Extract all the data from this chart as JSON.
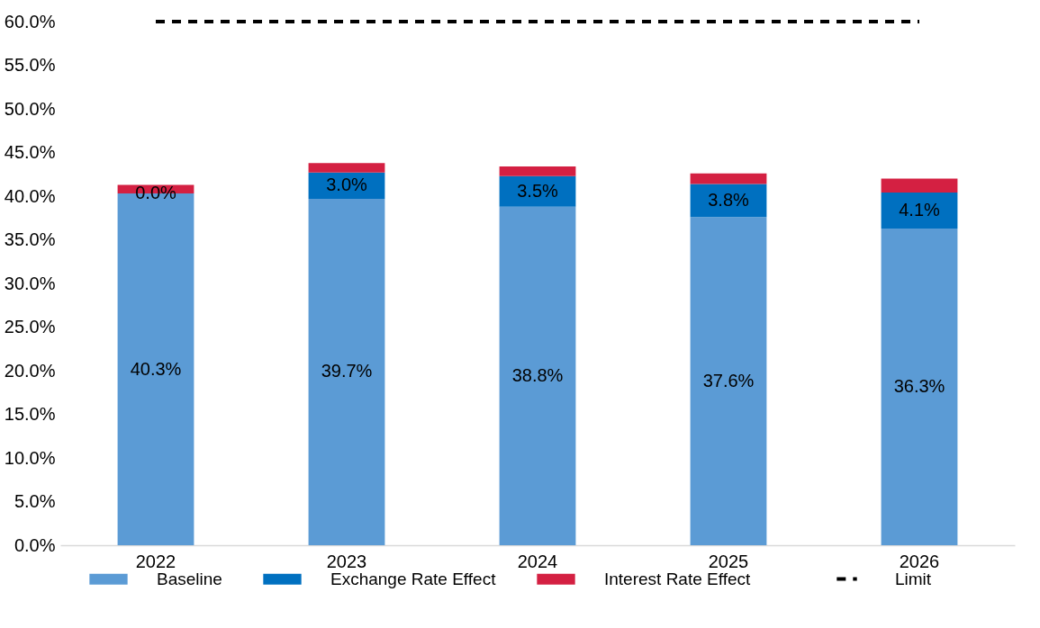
{
  "chart_data": {
    "type": "bar",
    "stacked": true,
    "categories": [
      "2022",
      "2023",
      "2024",
      "2025",
      "2026"
    ],
    "ylim": [
      0,
      60
    ],
    "yticks": [
      {
        "value": 0,
        "label": "0.0%"
      },
      {
        "value": 5,
        "label": "5.0%"
      },
      {
        "value": 10,
        "label": "10.0%"
      },
      {
        "value": 15,
        "label": "15.0%"
      },
      {
        "value": 20,
        "label": "20.0%"
      },
      {
        "value": 25,
        "label": "25.0%"
      },
      {
        "value": 30,
        "label": "30.0%"
      },
      {
        "value": 35,
        "label": "35.0%"
      },
      {
        "value": 40,
        "label": "40.0%"
      },
      {
        "value": 45,
        "label": "45.0%"
      },
      {
        "value": 50,
        "label": "50.0%"
      },
      {
        "value": 55,
        "label": "55.0%"
      },
      {
        "value": 60,
        "label": "60.0%"
      }
    ],
    "grid": false,
    "legend": "bottom",
    "series": [
      {
        "name": "Baseline",
        "type": "bar",
        "color": "#5b9bd5",
        "values": [
          40.3,
          39.7,
          38.8,
          37.6,
          36.3
        ],
        "value_labels": [
          "40.3%",
          "39.7%",
          "38.8%",
          "37.6%",
          "36.3%"
        ]
      },
      {
        "name": "Exchange Rate Effect",
        "type": "bar",
        "color": "#0070c0",
        "values": [
          0.0,
          3.0,
          3.5,
          3.8,
          4.1
        ],
        "value_labels": [
          "0.0%",
          "3.0%",
          "3.5%",
          "3.8%",
          "4.1%"
        ]
      },
      {
        "name": "Interest Rate Effect",
        "type": "bar",
        "color": "#d42042",
        "values": [
          1.0,
          1.1,
          1.1,
          1.2,
          1.6
        ]
      },
      {
        "name": "Limit",
        "type": "line",
        "color": "#000000",
        "line_style": "dashed",
        "values": [
          60,
          60,
          60,
          60,
          60
        ]
      }
    ]
  }
}
